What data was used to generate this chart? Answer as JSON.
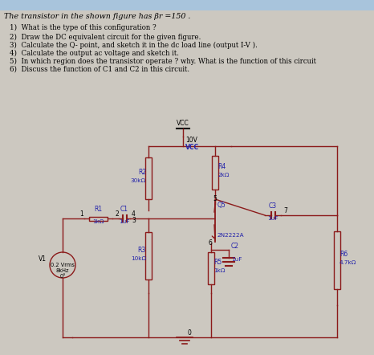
{
  "bg_color": "#ccc8c0",
  "header_bg": "#b8d0e8",
  "circuit_color": "#8B1A1A",
  "blue_color": "#2222aa",
  "title": "The transistor in the shown figure has βr =150 .",
  "q1": "1)  What is the type of this configuration ?",
  "q2": "2)  Draw the DC equivalent circuit for the given figure.",
  "q3": "3)  Calculate the Q- point, and sketch it in the dc load line (output I-V ).",
  "q4": "4)  Calculate the output ac voltage and sketch it.",
  "q5": "5)  In which region does the transistor operate ? why. What is the function of this circuit",
  "q6": "6)  Discuss the function of C1 and C2 in this circuit."
}
